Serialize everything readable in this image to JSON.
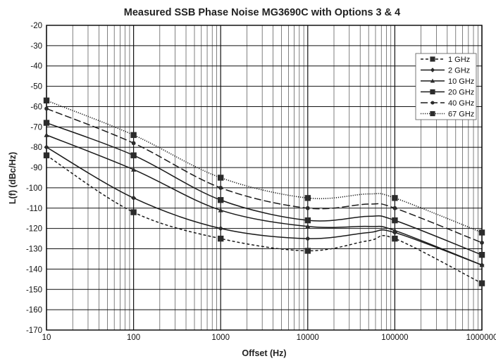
{
  "chart_data": {
    "type": "line",
    "title": "Measured SSB Phase Noise MG3690C with Options 3 & 4",
    "xlabel": "Offset (Hz)",
    "ylabel": "L(f) (dBc/Hz)",
    "x_scale": "log",
    "xlim": [
      10,
      1000000
    ],
    "ylim": [
      -170,
      -20
    ],
    "x_ticks": [
      10,
      100,
      1000,
      10000,
      100000,
      1000000
    ],
    "x_tick_labels": [
      "10",
      "100",
      "1000",
      "10000",
      "100000",
      "1000000"
    ],
    "y_ticks": [
      -20,
      -30,
      -40,
      -50,
      -60,
      -70,
      -80,
      -90,
      -100,
      -110,
      -120,
      -130,
      -140,
      -150,
      -160,
      -170
    ],
    "y_tick_labels": [
      "-20",
      "-30",
      "-40",
      "-50",
      "-60",
      "-70",
      "-80",
      "-90",
      "-100",
      "-110",
      "-120",
      "-130",
      "-140",
      "-150",
      "-160",
      "-170"
    ],
    "grid": true,
    "legend_position": "top-right",
    "series": [
      {
        "name": "1 GHz",
        "style": "short-dash",
        "marker": "square",
        "x": [
          10,
          100,
          1000,
          10000,
          50000,
          100000,
          1000000
        ],
        "y": [
          -84,
          -112,
          -125,
          -131,
          -126,
          -125,
          -147
        ],
        "marker_x": [
          10,
          100,
          1000,
          10000,
          100000,
          1000000
        ]
      },
      {
        "name": "2 GHz",
        "style": "solid",
        "marker": "diamond",
        "x": [
          10,
          100,
          1000,
          10000,
          50000,
          100000,
          1000000
        ],
        "y": [
          -80,
          -105,
          -120,
          -125,
          -122,
          -122,
          -138
        ],
        "marker_x": [
          10,
          100,
          1000,
          10000,
          100000,
          1000000
        ]
      },
      {
        "name": "10 GHz",
        "style": "solid",
        "marker": "triangle",
        "x": [
          10,
          100,
          1000,
          10000,
          50000,
          100000,
          1000000
        ],
        "y": [
          -74,
          -91,
          -111,
          -119,
          -119,
          -121,
          -138
        ],
        "marker_x": [
          10,
          100,
          1000,
          10000,
          100000,
          1000000
        ]
      },
      {
        "name": "20 GHz",
        "style": "solid",
        "marker": "square",
        "x": [
          10,
          100,
          1000,
          10000,
          50000,
          100000,
          1000000
        ],
        "y": [
          -68,
          -84,
          -106,
          -116,
          -114,
          -116,
          -133
        ],
        "marker_x": [
          10,
          100,
          1000,
          10000,
          100000,
          1000000
        ]
      },
      {
        "name": "40 GHz",
        "style": "long-dash",
        "marker": "circle",
        "x": [
          10,
          100,
          1000,
          10000,
          50000,
          100000,
          1000000
        ],
        "y": [
          -61,
          -78,
          -100,
          -110,
          -108,
          -110,
          -127
        ],
        "marker_x": [
          10,
          100,
          1000,
          10000,
          100000,
          1000000
        ]
      },
      {
        "name": "67 GHz",
        "style": "dotted",
        "marker": "square",
        "x": [
          10,
          100,
          1000,
          10000,
          50000,
          100000,
          1000000
        ],
        "y": [
          -57,
          -74,
          -95,
          -105,
          -103,
          -105,
          -122
        ],
        "marker_x": [
          10,
          100,
          1000,
          10000,
          100000,
          1000000
        ]
      }
    ]
  }
}
